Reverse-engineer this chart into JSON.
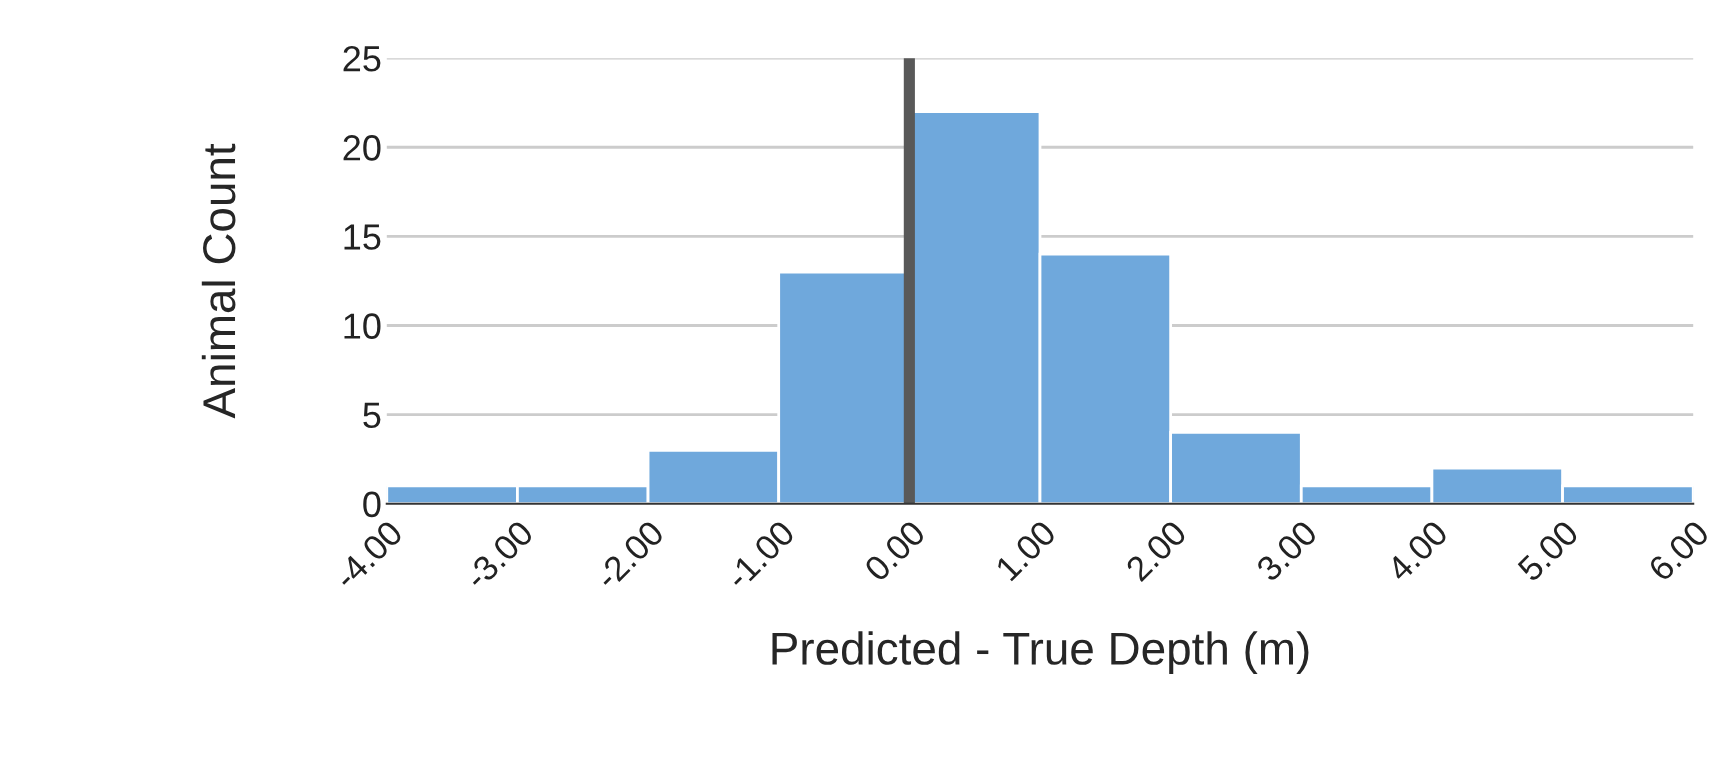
{
  "chart_data": {
    "type": "histogram",
    "xlabel": "Predicted - True Depth (m)",
    "ylabel": "Animal Count",
    "bins": [
      -4,
      -3,
      -2,
      -1,
      0,
      1,
      2,
      3,
      4,
      5,
      6
    ],
    "values": [
      1,
      1,
      3,
      13,
      22,
      14,
      4,
      1,
      2,
      1
    ],
    "color": "#6fa8dc",
    "xlim": [
      -4,
      6
    ],
    "xticks": [
      {
        "value": -4,
        "label": "-4.00"
      },
      {
        "value": -3,
        "label": "-3.00"
      },
      {
        "value": -2,
        "label": "-2.00"
      },
      {
        "value": -1,
        "label": "-1.00"
      },
      {
        "value": 0,
        "label": "0.00"
      },
      {
        "value": 1,
        "label": "1.00"
      },
      {
        "value": 2,
        "label": "2.00"
      },
      {
        "value": 3,
        "label": "3.00"
      },
      {
        "value": 4,
        "label": "4.00"
      },
      {
        "value": 5,
        "label": "5.00"
      },
      {
        "value": 6,
        "label": "6.00"
      }
    ],
    "ylim": [
      0,
      25
    ],
    "yticks": [
      0,
      5,
      10,
      15,
      20,
      25
    ],
    "grid": "y",
    "ref_lines": [
      {
        "axis": "x",
        "value": 0,
        "color": "#595959"
      }
    ]
  }
}
